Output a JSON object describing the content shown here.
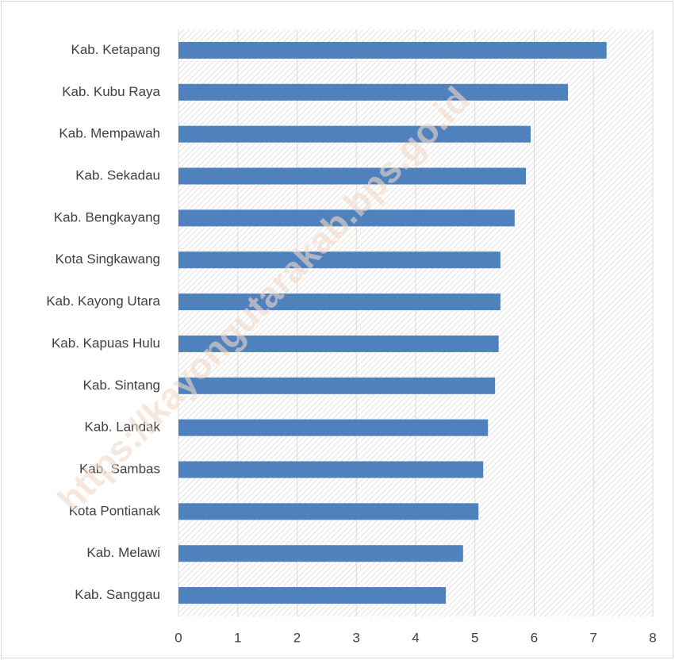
{
  "chart_data": {
    "type": "barh",
    "categories": [
      "Kab. Ketapang",
      "Kab. Kubu Raya",
      "Kab. Mempawah",
      "Kab. Sekadau",
      "Kab. Bengkayang",
      "Kota Singkawang",
      "Kab. Kayong Utara",
      "Kab. Kapuas Hulu",
      "Kab. Sintang",
      "Kab. Landak",
      "Kab. Sambas",
      "Kota Pontianak",
      "Kab. Melawi",
      "Kab. Sanggau"
    ],
    "values": [
      7.22,
      6.57,
      5.94,
      5.86,
      5.67,
      5.43,
      5.43,
      5.4,
      5.34,
      5.22,
      5.14,
      5.06,
      4.8,
      4.51
    ],
    "color": "#4f81bd",
    "xlim": [
      0,
      8
    ],
    "xticks": [
      0,
      1,
      2,
      3,
      4,
      5,
      6,
      7,
      8
    ],
    "grid": true,
    "watermark": "https://kayongutarakab.bps.go.id"
  }
}
